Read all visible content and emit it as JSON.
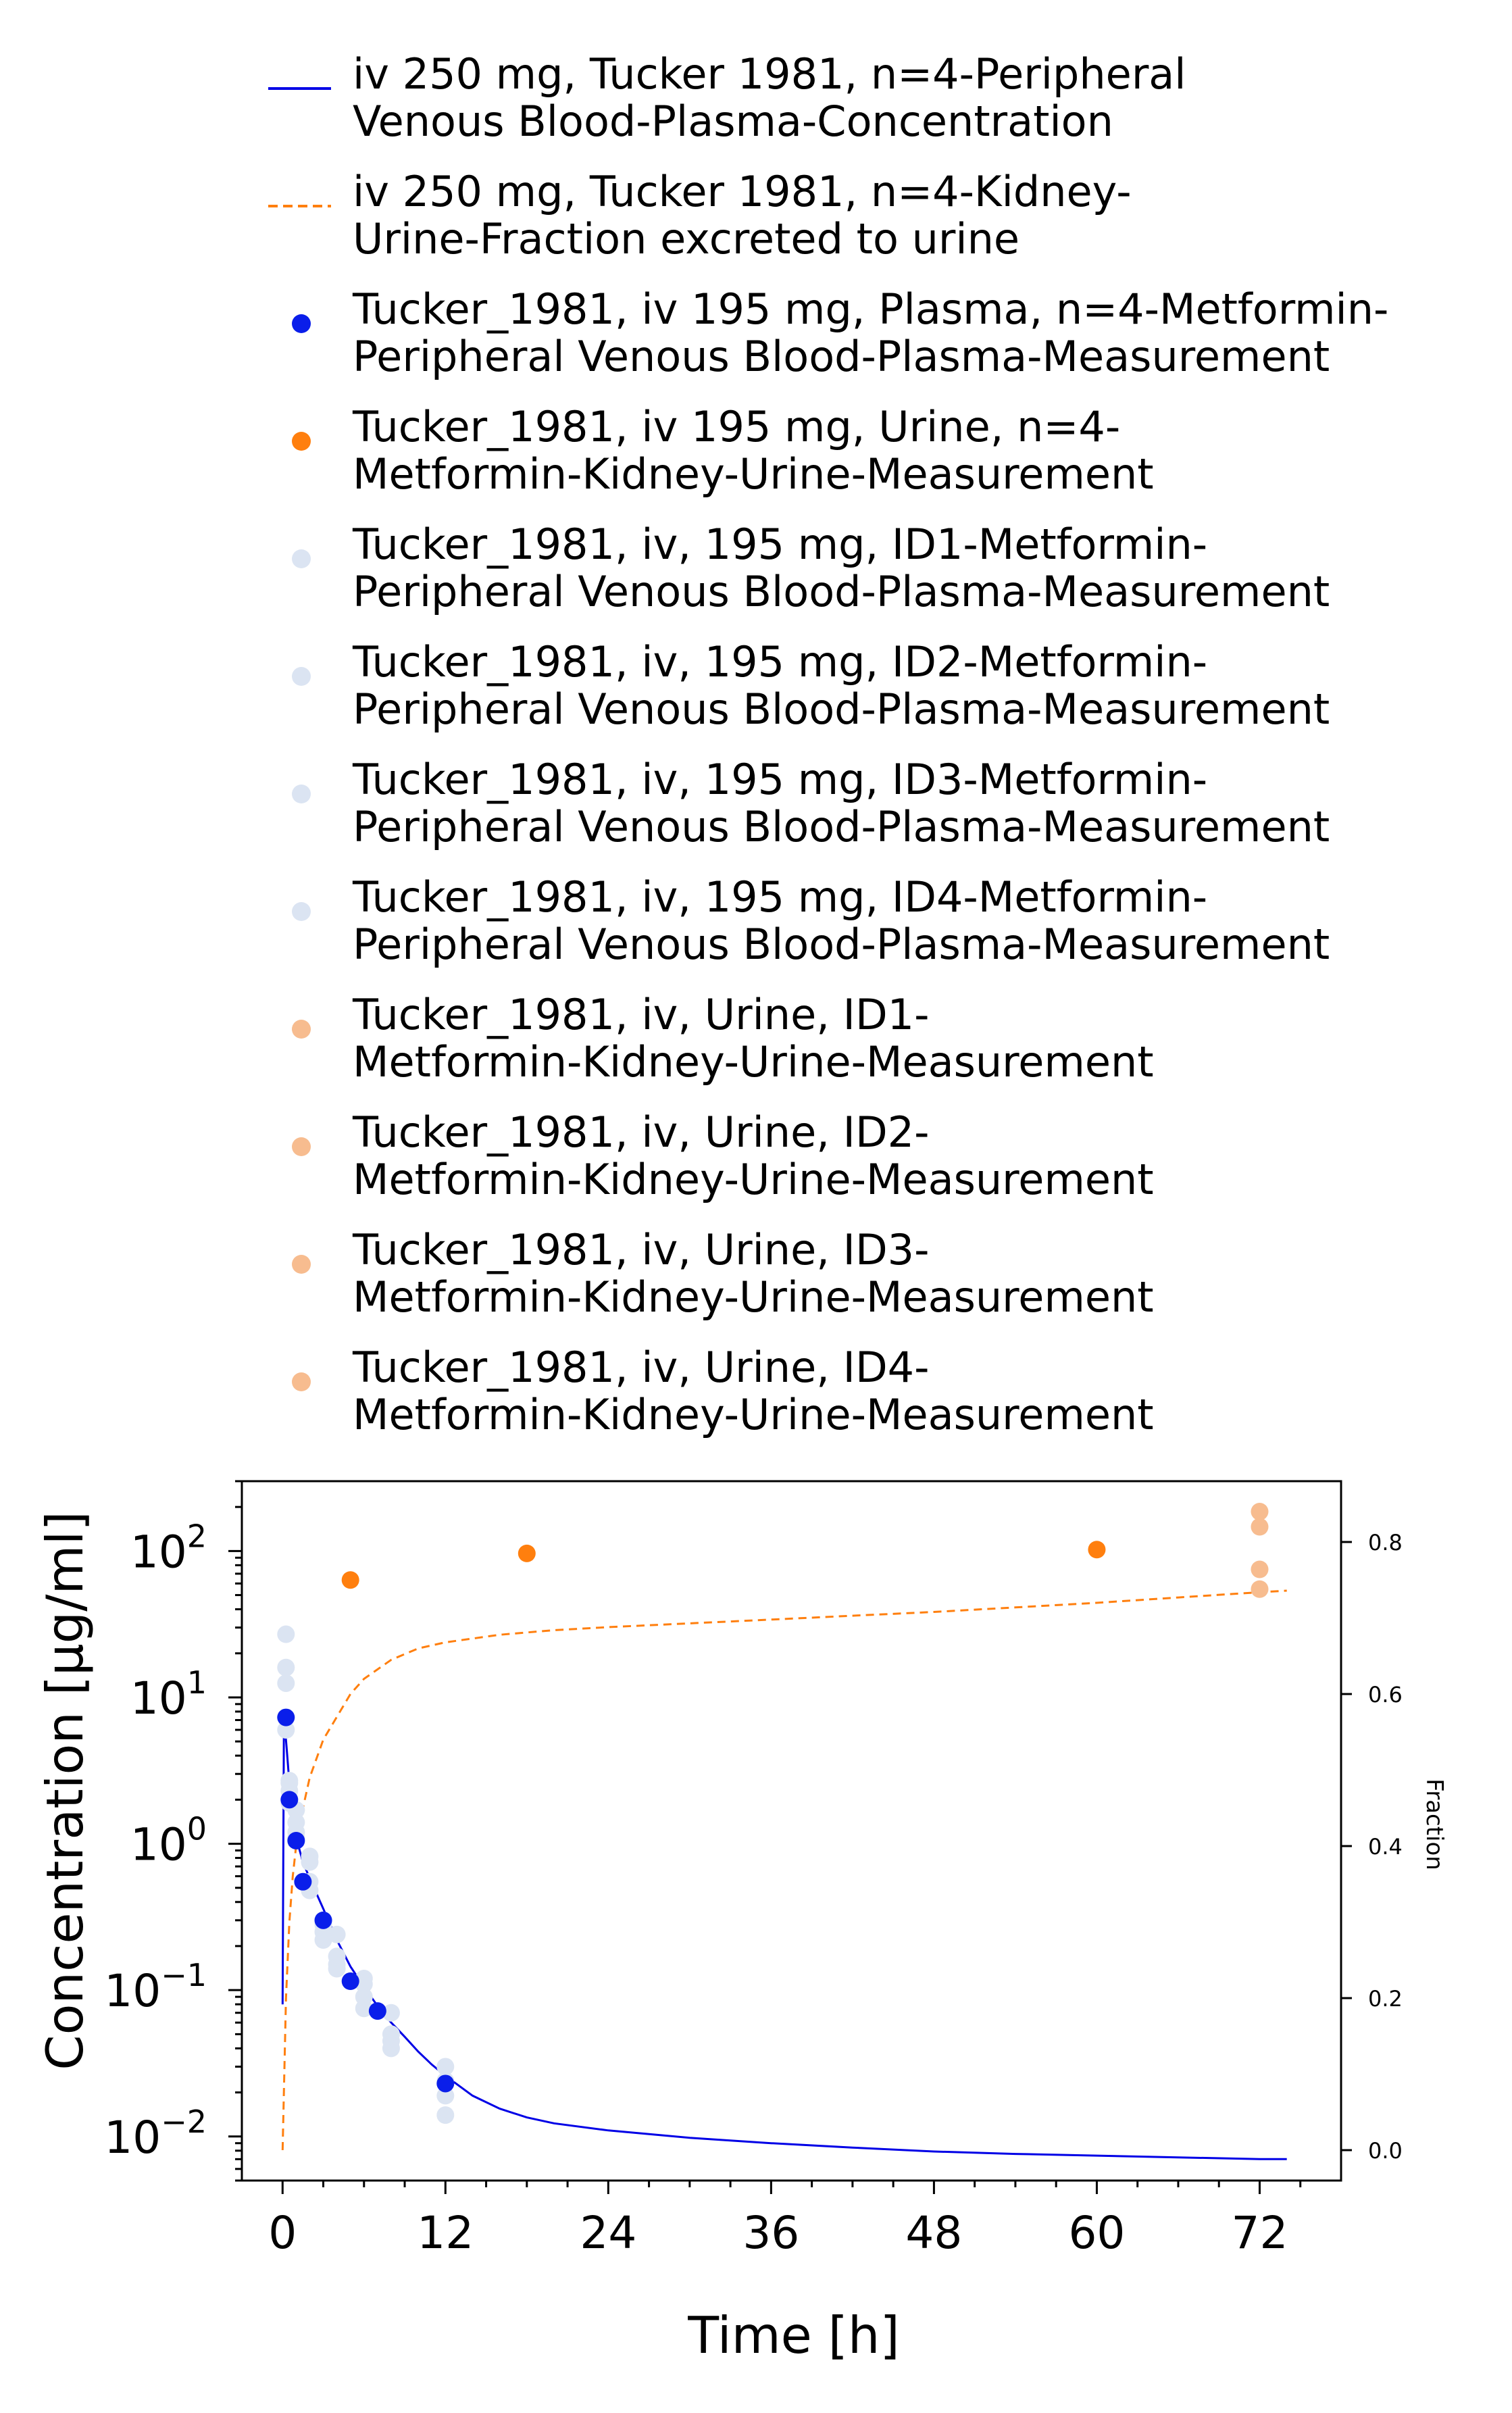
{
  "chart_data": {
    "type": "scatter",
    "title": "",
    "xlabel": "Time [h]",
    "ylabel": "Concentration [µg/ml]",
    "y2label": "Fraction",
    "xlim": [
      -3,
      78
    ],
    "ylim": [
      0.005,
      300
    ],
    "y_scale": "log",
    "y2lim": [
      -0.04,
      0.88
    ],
    "x_ticks": [
      0,
      12,
      24,
      36,
      48,
      60,
      72
    ],
    "x_tick_labels": [
      "0",
      "12",
      "24",
      "36",
      "48",
      "60",
      "72"
    ],
    "y_ticks": [
      {
        "value": 0.01,
        "base": "10",
        "exp": "−2"
      },
      {
        "value": 0.1,
        "base": "10",
        "exp": "−1"
      },
      {
        "value": 1,
        "base": "10",
        "exp": "0"
      },
      {
        "value": 10,
        "base": "10",
        "exp": "1"
      },
      {
        "value": 100,
        "base": "10",
        "exp": "2"
      }
    ],
    "y2_ticks": [
      0.0,
      0.2,
      0.4,
      0.6,
      0.8
    ],
    "y2_tick_labels": [
      "0.0",
      "0.2",
      "0.4",
      "0.6",
      "0.8"
    ],
    "grid": false,
    "legend_position": "top",
    "series": [
      {
        "name": "iv 250 mg, Tucker 1981, n=4-Peripheral Venous Blood-Plasma-Concentration",
        "legend_lines": [
          "iv 250 mg, Tucker 1981, n=4-Peripheral",
          "Venous Blood-Plasma-Concentration"
        ],
        "kind": "line",
        "axis": "left",
        "color": "#0000e6",
        "dash": "solid",
        "points": [
          [
            0.0,
            0.08
          ],
          [
            0.1,
            7.5
          ],
          [
            0.3,
            4.5
          ],
          [
            0.5,
            2.6
          ],
          [
            0.75,
            1.6
          ],
          [
            1,
            1.1
          ],
          [
            1.5,
            0.75
          ],
          [
            2,
            0.58
          ],
          [
            3,
            0.36
          ],
          [
            4,
            0.22
          ],
          [
            5,
            0.145
          ],
          [
            6,
            0.105
          ],
          [
            7,
            0.078
          ],
          [
            8,
            0.06
          ],
          [
            9,
            0.048
          ],
          [
            10,
            0.038
          ],
          [
            11,
            0.031
          ],
          [
            12,
            0.026
          ],
          [
            14,
            0.019
          ],
          [
            16,
            0.0155
          ],
          [
            18,
            0.0135
          ],
          [
            20,
            0.0123
          ],
          [
            24,
            0.011
          ],
          [
            30,
            0.0098
          ],
          [
            36,
            0.009
          ],
          [
            42,
            0.0084
          ],
          [
            48,
            0.0079
          ],
          [
            54,
            0.0076
          ],
          [
            60,
            0.0074
          ],
          [
            66,
            0.0072
          ],
          [
            72,
            0.007
          ],
          [
            74,
            0.007
          ]
        ]
      },
      {
        "name": "iv 250 mg, Tucker 1981, n=4-Kidney-Urine-Fraction excreted to urine",
        "legend_lines": [
          "iv 250 mg, Tucker 1981, n=4-Kidney-",
          "Urine-Fraction excreted to urine"
        ],
        "kind": "line",
        "axis": "right",
        "color": "#ff7f0e",
        "dash": "dashed",
        "points": [
          [
            0,
            0.0
          ],
          [
            0.25,
            0.2
          ],
          [
            0.5,
            0.3
          ],
          [
            0.75,
            0.36
          ],
          [
            1,
            0.4
          ],
          [
            1.5,
            0.45
          ],
          [
            2,
            0.49
          ],
          [
            3,
            0.54
          ],
          [
            4,
            0.57
          ],
          [
            5,
            0.6
          ],
          [
            6,
            0.62
          ],
          [
            8,
            0.645
          ],
          [
            10,
            0.66
          ],
          [
            12,
            0.668
          ],
          [
            16,
            0.678
          ],
          [
            20,
            0.684
          ],
          [
            24,
            0.688
          ],
          [
            30,
            0.693
          ],
          [
            36,
            0.698
          ],
          [
            42,
            0.703
          ],
          [
            48,
            0.708
          ],
          [
            54,
            0.714
          ],
          [
            60,
            0.72
          ],
          [
            66,
            0.727
          ],
          [
            72,
            0.734
          ],
          [
            74,
            0.736
          ]
        ]
      },
      {
        "name": "Tucker_1981, iv 195 mg, Plasma, n=4-Metformin-Peripheral Venous Blood-Plasma-Measurement",
        "legend_lines": [
          "Tucker_1981, iv 195 mg, Plasma, n=4-Metformin-",
          "Peripheral Venous Blood-Plasma-Measurement"
        ],
        "kind": "scatter",
        "axis": "left",
        "color": "#0a1eea",
        "points": [
          [
            0.25,
            7.3
          ],
          [
            0.5,
            2.0
          ],
          [
            1.0,
            1.05
          ],
          [
            1.5,
            0.55
          ],
          [
            3.0,
            0.3
          ],
          [
            5.0,
            0.115
          ],
          [
            7.0,
            0.072
          ],
          [
            12.0,
            0.023
          ]
        ]
      },
      {
        "name": "Tucker_1981, iv 195 mg, Urine, n=4-Metformin-Kidney-Urine-Measurement",
        "legend_lines": [
          "Tucker_1981, iv 195 mg, Urine, n=4-",
          "Metformin-Kidney-Urine-Measurement"
        ],
        "kind": "scatter",
        "axis": "right",
        "color": "#ff7f0e",
        "points": [
          [
            5,
            0.75
          ],
          [
            18,
            0.785
          ],
          [
            60,
            0.79
          ]
        ]
      },
      {
        "name": "Tucker_1981, iv, 195 mg, ID1-Metformin-Peripheral Venous Blood-Plasma-Measurement",
        "legend_lines": [
          "Tucker_1981, iv, 195 mg, ID1-Metformin-",
          "Peripheral Venous Blood-Plasma-Measurement"
        ],
        "kind": "scatter",
        "axis": "left",
        "color": "#dbe4f2",
        "points": [
          [
            0.25,
            27
          ],
          [
            0.5,
            2.6
          ],
          [
            1.0,
            1.2
          ],
          [
            2.0,
            0.75
          ],
          [
            3.0,
            0.3
          ],
          [
            4.0,
            0.24
          ],
          [
            6.0,
            0.11
          ],
          [
            8.0,
            0.07
          ],
          [
            12.0,
            0.03
          ]
        ]
      },
      {
        "name": "Tucker_1981, iv, 195 mg, ID2-Metformin-Peripheral Venous Blood-Plasma-Measurement",
        "legend_lines": [
          "Tucker_1981, iv, 195 mg, ID2-Metformin-",
          "Peripheral Venous Blood-Plasma-Measurement"
        ],
        "kind": "scatter",
        "axis": "left",
        "color": "#dbe4f2",
        "points": [
          [
            0.25,
            16
          ],
          [
            0.5,
            2.3
          ],
          [
            1.0,
            1.4
          ],
          [
            2.0,
            0.55
          ],
          [
            3.0,
            0.28
          ],
          [
            4.0,
            0.17
          ],
          [
            6.0,
            0.09
          ],
          [
            8.0,
            0.05
          ],
          [
            12.0,
            0.024
          ]
        ]
      },
      {
        "name": "Tucker_1981, iv, 195 mg, ID3-Metformin-Peripheral Venous Blood-Plasma-Measurement",
        "legend_lines": [
          "Tucker_1981, iv, 195 mg, ID3-Metformin-",
          "Peripheral Venous Blood-Plasma-Measurement"
        ],
        "kind": "scatter",
        "axis": "left",
        "color": "#dbe4f2",
        "points": [
          [
            0.25,
            12.5
          ],
          [
            0.5,
            1.9
          ],
          [
            1.0,
            1.1
          ],
          [
            2.0,
            0.48
          ],
          [
            3.0,
            0.25
          ],
          [
            4.0,
            0.15
          ],
          [
            6.0,
            0.075
          ],
          [
            8.0,
            0.045
          ],
          [
            12.0,
            0.019
          ]
        ]
      },
      {
        "name": "Tucker_1981, iv, 195 mg, ID4-Metformin-Peripheral Venous Blood-Plasma-Measurement",
        "legend_lines": [
          "Tucker_1981, iv, 195 mg, ID4-Metformin-",
          "Peripheral Venous Blood-Plasma-Measurement"
        ],
        "kind": "scatter",
        "axis": "left",
        "color": "#dbe4f2",
        "points": [
          [
            0.25,
            6.0
          ],
          [
            0.5,
            2.7
          ],
          [
            1.0,
            1.7
          ],
          [
            2.0,
            0.82
          ],
          [
            3.0,
            0.22
          ],
          [
            4.0,
            0.14
          ],
          [
            6.0,
            0.12
          ],
          [
            8.0,
            0.04
          ],
          [
            12.0,
            0.014
          ]
        ]
      },
      {
        "name": "Tucker_1981, iv, Urine, ID1-Metformin-Kidney-Urine-Measurement",
        "legend_lines": [
          "Tucker_1981, iv, Urine, ID1-",
          "Metformin-Kidney-Urine-Measurement"
        ],
        "kind": "scatter",
        "axis": "right",
        "color": "#f7bc8f",
        "points": [
          [
            72,
            0.84
          ]
        ]
      },
      {
        "name": "Tucker_1981, iv, Urine, ID2-Metformin-Kidney-Urine-Measurement",
        "legend_lines": [
          "Tucker_1981, iv, Urine, ID2-",
          "Metformin-Kidney-Urine-Measurement"
        ],
        "kind": "scatter",
        "axis": "right",
        "color": "#f7bc8f",
        "points": [
          [
            72,
            0.82
          ]
        ]
      },
      {
        "name": "Tucker_1981, iv, Urine, ID3-Metformin-Kidney-Urine-Measurement",
        "legend_lines": [
          "Tucker_1981, iv, Urine, ID3-",
          "Metformin-Kidney-Urine-Measurement"
        ],
        "kind": "scatter",
        "axis": "right",
        "color": "#f7bc8f",
        "points": [
          [
            72,
            0.764
          ]
        ]
      },
      {
        "name": "Tucker_1981, iv, Urine, ID4-Metformin-Kidney-Urine-Measurement",
        "legend_lines": [
          "Tucker_1981, iv, Urine, ID4-",
          "Metformin-Kidney-Urine-Measurement"
        ],
        "kind": "scatter",
        "axis": "right",
        "color": "#f7bc8f",
        "points": [
          [
            72,
            0.738
          ]
        ]
      }
    ]
  }
}
